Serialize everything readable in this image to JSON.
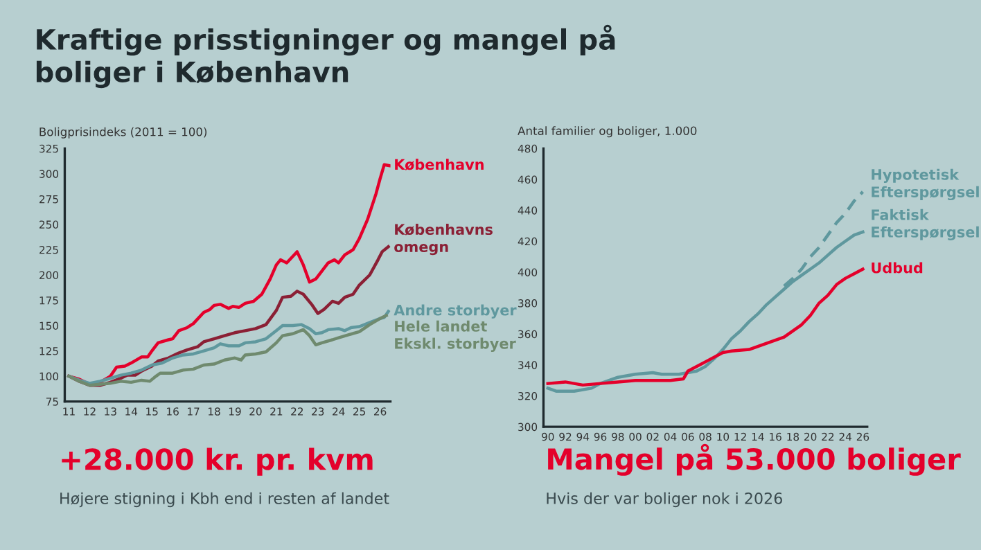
{
  "chart_data": [
    {
      "type": "line",
      "title": "Kraftige prisstigninger og mangel på\nboliger i København",
      "ylabel": "Boligprisindeks (2011 = 100)",
      "annotations": [
        "+28.000 kr. pr. kvm",
        "Højere stigning i Kbh end i resten af landet"
      ],
      "xlim": [
        10.8,
        26.5
      ],
      "xticks": [
        11,
        12,
        13,
        14,
        15,
        16,
        17,
        18,
        19,
        20,
        21,
        22,
        23,
        24,
        25,
        26
      ],
      "ylim": [
        75,
        325
      ],
      "yticks": [
        75,
        100,
        125,
        150,
        175,
        200,
        225,
        250,
        275,
        300,
        325
      ],
      "grid": false,
      "legend": false,
      "series": [
        {
          "name": "København",
          "color": "#e4002b",
          "x": [
            11,
            11.5,
            12,
            12.5,
            13,
            13.3,
            13.7,
            14,
            14.5,
            14.8,
            15,
            15.3,
            15.8,
            16,
            16.3,
            16.7,
            17,
            17.5,
            17.8,
            18,
            18.3,
            18.7,
            18.9,
            19.2,
            19.5,
            19.9,
            20.3,
            20.7,
            21,
            21.2,
            21.5,
            22,
            22.3,
            22.6,
            22.9,
            23.2,
            23.5,
            23.8,
            24,
            24.3,
            24.7,
            25,
            25.4,
            25.8,
            26,
            26.2,
            26.45
          ],
          "values": [
            100,
            97,
            92,
            94,
            100,
            109,
            110,
            113,
            119,
            119,
            125,
            133,
            136,
            137,
            145,
            148,
            152,
            163,
            166,
            170,
            171,
            167,
            169,
            168,
            172,
            174,
            181,
            196,
            210,
            215,
            212,
            223,
            210,
            193,
            196,
            204,
            212,
            215,
            212,
            220,
            225,
            236,
            255,
            280,
            295,
            309,
            308
          ]
        },
        {
          "name": "Københavns\nomegn",
          "color": "#8b2035",
          "x": [
            11,
            11.5,
            12,
            12.5,
            13,
            13.5,
            13.8,
            14.2,
            14.5,
            15,
            15.3,
            15.8,
            16.3,
            16.7,
            17.2,
            17.5,
            18,
            18.5,
            19,
            19.5,
            20,
            20.5,
            21,
            21.3,
            21.7,
            22,
            22.3,
            22.7,
            23,
            23.3,
            23.7,
            24,
            24.3,
            24.7,
            25,
            25.5,
            25.9,
            26.1,
            26.4
          ],
          "values": [
            100,
            95,
            91,
            91,
            94,
            98,
            101,
            101,
            105,
            110,
            115,
            118,
            123,
            126,
            129,
            134,
            137,
            140,
            143,
            145,
            147,
            151,
            165,
            178,
            179,
            184,
            181,
            171,
            162,
            166,
            174,
            172,
            178,
            181,
            190,
            200,
            215,
            223,
            228
          ]
        },
        {
          "name": "Andre storbyer",
          "color": "#5f989e",
          "x": [
            11,
            11.5,
            12,
            12.5,
            13,
            13.5,
            14,
            14.5,
            15,
            15.5,
            16,
            16.5,
            17,
            17.5,
            18,
            18.3,
            18.7,
            19.2,
            19.5,
            20,
            20.5,
            21,
            21.3,
            21.8,
            22.2,
            22.6,
            22.9,
            23.2,
            23.5,
            24,
            24.3,
            24.6,
            25,
            25.5,
            26,
            26.2,
            26.4
          ],
          "values": [
            100,
            96,
            93,
            95,
            98,
            101,
            103,
            106,
            111,
            113,
            118,
            121,
            122,
            125,
            128,
            132,
            130,
            130,
            133,
            134,
            137,
            145,
            150,
            150,
            151,
            147,
            142,
            143,
            146,
            147,
            145,
            148,
            149,
            153,
            157,
            158,
            164
          ]
        },
        {
          "name": "Hele landet\nEkskl. storbyer",
          "color": "#6f8a6e",
          "x": [
            11,
            11.5,
            12,
            12.5,
            13,
            13.5,
            14,
            14.5,
            14.9,
            15.2,
            15.4,
            16,
            16.5,
            17,
            17.5,
            18,
            18.5,
            19,
            19.3,
            19.5,
            20,
            20.5,
            21,
            21.3,
            21.8,
            22.3,
            22.6,
            22.9,
            23.2,
            23.7,
            24,
            24.5,
            25,
            25.5,
            26,
            26.3
          ],
          "values": [
            100,
            95,
            91,
            92,
            93,
            95,
            94,
            96,
            95,
            100,
            103,
            103,
            106,
            107,
            111,
            112,
            116,
            118,
            116,
            121,
            122,
            124,
            133,
            140,
            142,
            146,
            140,
            131,
            133,
            136,
            138,
            141,
            144,
            151,
            157,
            160
          ]
        }
      ]
    },
    {
      "type": "line",
      "ylabel": "Antal familier og boliger, 1.000",
      "annotations": [
        "Mangel på 53.000 boliger",
        "Hvis der var boliger nok i 2026"
      ],
      "xlim": [
        1989.5,
        2026.5
      ],
      "xticks": [
        {
          "value": 1990,
          "label": "90"
        },
        {
          "value": 1992,
          "label": "92"
        },
        {
          "value": 1994,
          "label": "94"
        },
        {
          "value": 1996,
          "label": "96"
        },
        {
          "value": 1998,
          "label": "98"
        },
        {
          "value": 2000,
          "label": "00"
        },
        {
          "value": 2002,
          "label": "02"
        },
        {
          "value": 2004,
          "label": "04"
        },
        {
          "value": 2006,
          "label": "06"
        },
        {
          "value": 2008,
          "label": "08"
        },
        {
          "value": 2010,
          "label": "10"
        },
        {
          "value": 2012,
          "label": "12"
        },
        {
          "value": 2014,
          "label": "14"
        },
        {
          "value": 2016,
          "label": "16"
        },
        {
          "value": 2018,
          "label": "18"
        },
        {
          "value": 2020,
          "label": "20"
        },
        {
          "value": 2022,
          "label": "22"
        },
        {
          "value": 2024,
          "label": "24"
        },
        {
          "value": 2026,
          "label": "26"
        }
      ],
      "ylim": [
        300,
        480
      ],
      "yticks": [
        300,
        320,
        340,
        360,
        380,
        400,
        420,
        440,
        460,
        480
      ],
      "grid": false,
      "legend": false,
      "series": [
        {
          "name": "Hypotetisk\nEfterspørgsel",
          "color": "#5f989e",
          "line_style": "dashed",
          "x": [
            2017,
            2018,
            2019,
            2020,
            2021,
            2022,
            2023,
            2024,
            2025,
            2026
          ],
          "values": [
            391,
            396,
            402,
            410,
            416,
            424,
            432,
            438,
            446,
            452
          ]
        },
        {
          "name": "Faktisk\nEfterspørgsel",
          "color": "#5f989e",
          "x": [
            1990,
            1991,
            1993,
            1995,
            1996,
            1997,
            1998,
            2000,
            2002,
            2003,
            2005,
            2006,
            2007,
            2008,
            2009,
            2010,
            2011,
            2012,
            2013,
            2014,
            2015,
            2016,
            2017,
            2018,
            2019,
            2020,
            2021,
            2022,
            2023,
            2024,
            2025,
            2026
          ],
          "values": [
            325,
            323,
            323,
            325,
            328,
            330,
            332,
            334,
            335,
            334,
            334,
            335,
            336,
            339,
            344,
            350,
            357,
            362,
            368,
            373,
            379,
            384,
            389,
            394,
            398,
            402,
            406,
            411,
            416,
            420,
            424,
            426
          ]
        },
        {
          "name": "Udbud",
          "color": "#e4002b",
          "x": [
            1990,
            1992,
            1994,
            1996,
            1998,
            2000,
            2002,
            2004,
            2005.5,
            2006,
            2008,
            2010,
            2011,
            2013,
            2014,
            2016,
            2017,
            2019,
            2020,
            2021,
            2022,
            2023,
            2024,
            2025,
            2026
          ],
          "values": [
            328,
            329,
            327,
            328,
            329,
            330,
            330,
            330,
            331,
            336,
            342,
            348,
            349,
            350,
            352,
            356,
            358,
            366,
            372,
            380,
            385,
            392,
            396,
            399,
            402
          ]
        }
      ]
    }
  ]
}
